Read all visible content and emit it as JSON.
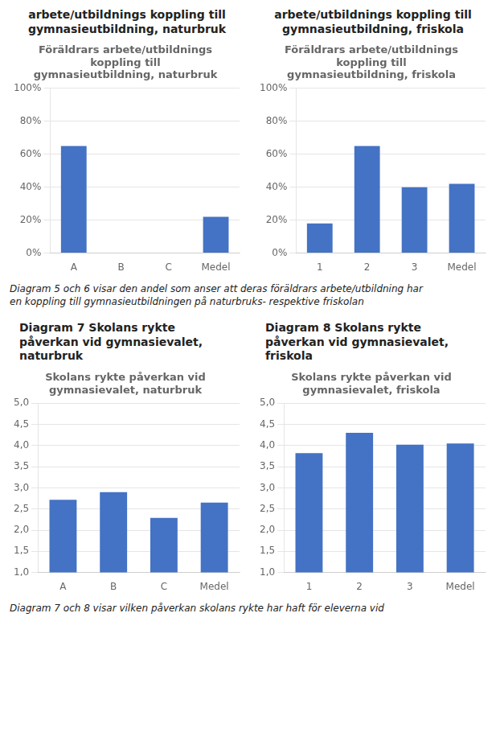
{
  "chart_data": [
    {
      "type": "bar",
      "heading": "arbete/utbildnings koppling till\ngymnasieutbildning, naturbruk",
      "title": "Föräldrars arbete/utbildnings\nkoppling till\ngymnasieutbildning, naturbruk",
      "categories": [
        "A",
        "B",
        "C",
        "Medel"
      ],
      "values": [
        0.65,
        0.0,
        0.0,
        0.22
      ],
      "color": "#4472C4",
      "ylim": [
        0,
        1.0
      ],
      "yticks": [
        {
          "value": 0,
          "label": "0%"
        },
        {
          "value": 0.2,
          "label": "20%"
        },
        {
          "value": 0.4,
          "label": "40%"
        },
        {
          "value": 0.6,
          "label": "60%"
        },
        {
          "value": 0.8,
          "label": "80%"
        },
        {
          "value": 1.0,
          "label": "100%"
        }
      ],
      "grid": true
    },
    {
      "type": "bar",
      "heading": "arbete/utbildnings koppling till\ngymnasieutbildning, friskola",
      "title": "Föräldrars arbete/utbildnings\nkoppling till\ngymnasieutbildning, friskola",
      "categories": [
        "1",
        "2",
        "3",
        "Medel"
      ],
      "values": [
        0.18,
        0.65,
        0.4,
        0.42
      ],
      "color": "#4472C4",
      "ylim": [
        0,
        1.0
      ],
      "yticks": [
        {
          "value": 0,
          "label": "0%"
        },
        {
          "value": 0.2,
          "label": "20%"
        },
        {
          "value": 0.4,
          "label": "40%"
        },
        {
          "value": 0.6,
          "label": "60%"
        },
        {
          "value": 0.8,
          "label": "80%"
        },
        {
          "value": 1.0,
          "label": "100%"
        }
      ],
      "grid": true
    },
    {
      "type": "bar",
      "heading": "Diagram 7 Skolans rykte\npåverkan vid gymnasievalet,\nnaturbruk",
      "title": "Skolans rykte påverkan vid\ngymnasievalet, naturbruk",
      "categories": [
        "A",
        "B",
        "C",
        "Medel"
      ],
      "values": [
        2.72,
        2.9,
        2.29,
        2.65
      ],
      "color": "#4472C4",
      "ylim": [
        1.0,
        5.0
      ],
      "yticks": [
        {
          "value": 1.0,
          "label": "1,0"
        },
        {
          "value": 1.5,
          "label": "1,5"
        },
        {
          "value": 2.0,
          "label": "2,0"
        },
        {
          "value": 2.5,
          "label": "2,5"
        },
        {
          "value": 3.0,
          "label": "3,0"
        },
        {
          "value": 3.5,
          "label": "3,5"
        },
        {
          "value": 4.0,
          "label": "4,0"
        },
        {
          "value": 4.5,
          "label": "4,5"
        },
        {
          "value": 5.0,
          "label": "5,0"
        }
      ],
      "grid": true
    },
    {
      "type": "bar",
      "heading": "Diagram 8 Skolans rykte\npåverkan vid gymnasievalet,\nfriskola",
      "title": "Skolans rykte påverkan vid\ngymnasievalet, friskola",
      "categories": [
        "1",
        "2",
        "3",
        "Medel"
      ],
      "values": [
        3.82,
        4.3,
        4.02,
        4.05
      ],
      "color": "#4472C4",
      "ylim": [
        1.0,
        5.0
      ],
      "yticks": [
        {
          "value": 1.0,
          "label": "1,0"
        },
        {
          "value": 1.5,
          "label": "1,5"
        },
        {
          "value": 2.0,
          "label": "2,0"
        },
        {
          "value": 2.5,
          "label": "2,5"
        },
        {
          "value": 3.0,
          "label": "3,0"
        },
        {
          "value": 3.5,
          "label": "3,5"
        },
        {
          "value": 4.0,
          "label": "4,0"
        },
        {
          "value": 4.5,
          "label": "4,5"
        },
        {
          "value": 5.0,
          "label": "5,0"
        }
      ],
      "grid": true
    }
  ],
  "annotations": [
    "Diagram 5 och 6 visar den andel som anser att deras föräldrars arbete/utbildning har\nen koppling till gymnasieutbildningen på naturbruks- respektive friskolan",
    "Diagram 7 och 8 visar vilken påverkan skolans rykte har haft för eleverna vid"
  ]
}
